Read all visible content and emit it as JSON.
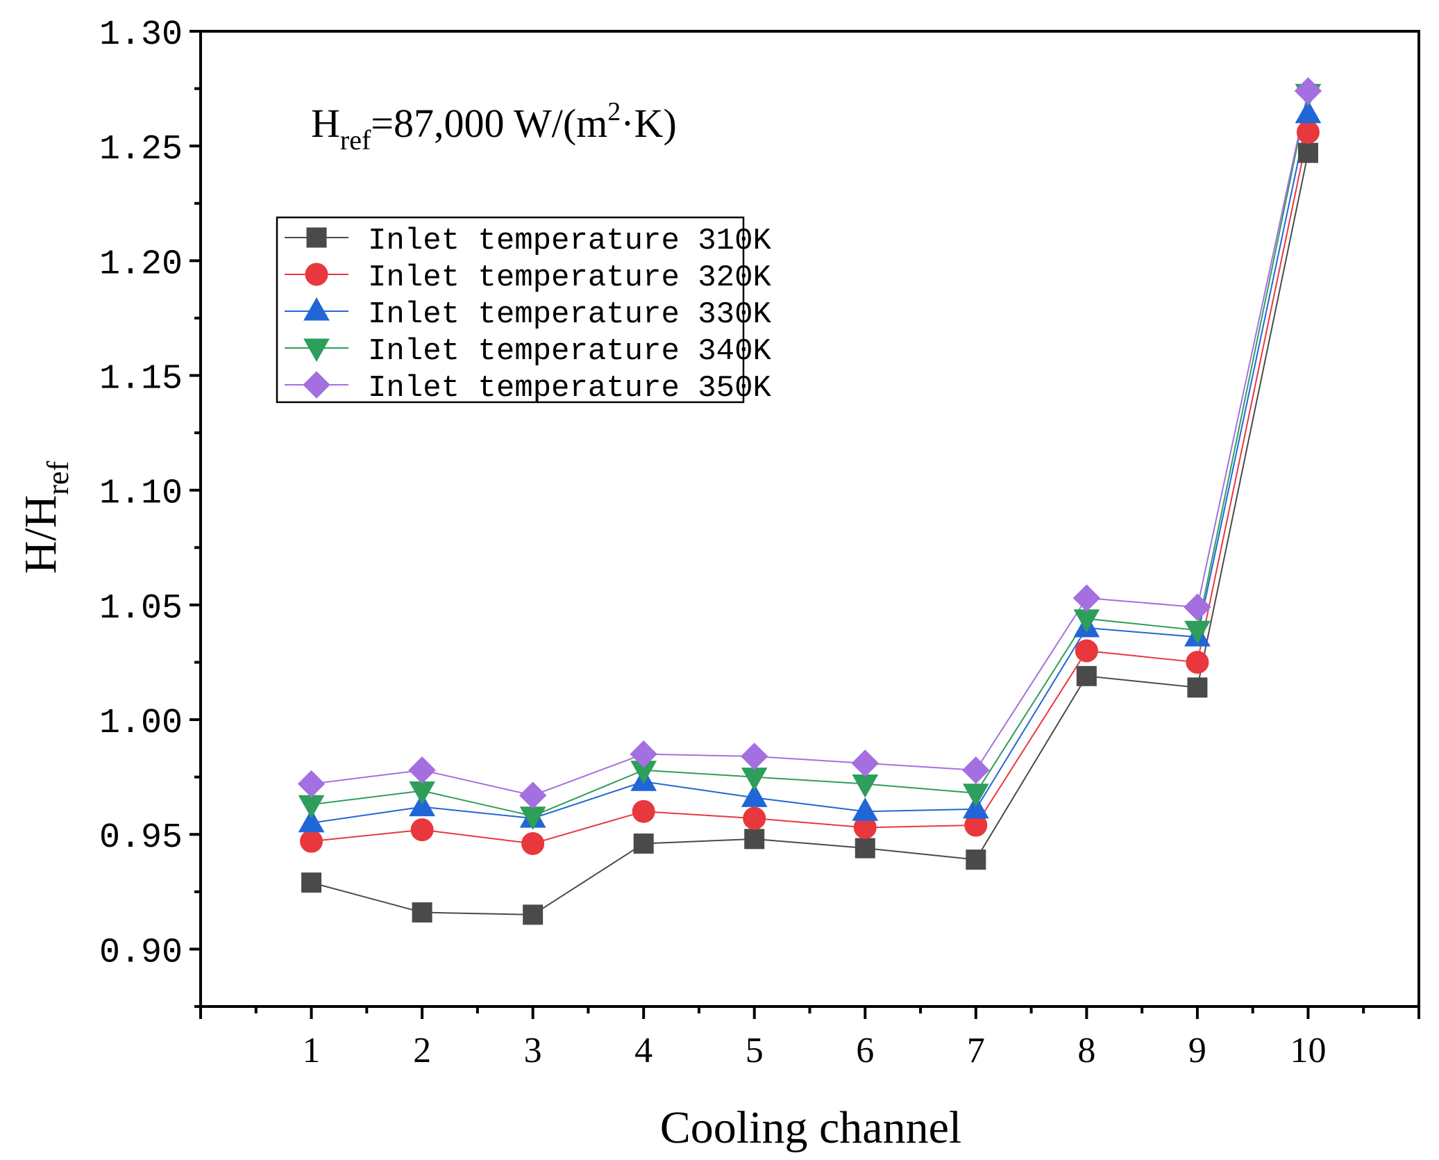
{
  "chart_data": {
    "type": "line",
    "title": "",
    "annotation": {
      "prefix": "H",
      "prefix_sub": "ref",
      "value": "=87,000 W/(m",
      "value_sup": "2",
      "unit_tail": "·K)"
    },
    "xlabel": "Cooling channel",
    "ylabel": {
      "main": "H/H",
      "sub": "ref"
    },
    "x": [
      1,
      2,
      3,
      4,
      5,
      6,
      7,
      8,
      9,
      10
    ],
    "xlim": [
      0,
      11
    ],
    "ylim": [
      0.875,
      1.3
    ],
    "xticks": [
      "1",
      "2",
      "3",
      "4",
      "5",
      "6",
      "7",
      "8",
      "9",
      "10"
    ],
    "yticks": [
      {
        "value": 0.9,
        "label": "0.90"
      },
      {
        "value": 0.95,
        "label": "0.95"
      },
      {
        "value": 1.0,
        "label": "1.00"
      },
      {
        "value": 1.05,
        "label": "1.05"
      },
      {
        "value": 1.1,
        "label": "1.10"
      },
      {
        "value": 1.15,
        "label": "1.15"
      },
      {
        "value": 1.2,
        "label": "1.20"
      },
      {
        "value": 1.25,
        "label": "1.25"
      },
      {
        "value": 1.3,
        "label": "1.30"
      }
    ],
    "grid": false,
    "legend_position": "upper-left",
    "series": [
      {
        "name": "Inlet temperature 310K",
        "marker": "square",
        "color": "#4a4a4a",
        "values": [
          0.929,
          0.916,
          0.915,
          0.946,
          0.948,
          0.944,
          0.939,
          1.019,
          1.014,
          1.247
        ]
      },
      {
        "name": "Inlet temperature 320K",
        "marker": "circle",
        "color": "#e8383d",
        "values": [
          0.947,
          0.952,
          0.946,
          0.96,
          0.957,
          0.953,
          0.954,
          1.03,
          1.025,
          1.256
        ]
      },
      {
        "name": "Inlet temperature 330K",
        "marker": "triangle-up",
        "color": "#2166d6",
        "values": [
          0.955,
          0.962,
          0.957,
          0.973,
          0.966,
          0.96,
          0.961,
          1.04,
          1.036,
          1.264
        ]
      },
      {
        "name": "Inlet temperature 340K",
        "marker": "triangle-down",
        "color": "#2e9e5b",
        "values": [
          0.963,
          0.969,
          0.958,
          0.978,
          0.975,
          0.972,
          0.968,
          1.044,
          1.039,
          1.273
        ]
      },
      {
        "name": "Inlet temperature 350K",
        "marker": "diamond",
        "color": "#a46fe0",
        "values": [
          0.972,
          0.978,
          0.967,
          0.985,
          0.984,
          0.981,
          0.978,
          1.053,
          1.049,
          1.274
        ]
      }
    ]
  }
}
